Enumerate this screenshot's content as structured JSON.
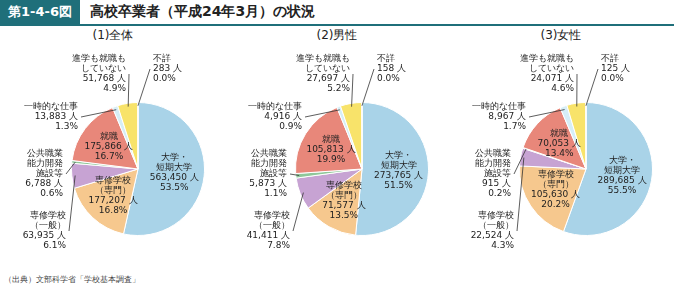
{
  "figure_number": "第1-4-6図",
  "title": "高校卒業者（平成24年3月）の状況",
  "source": "（出典）文部科学省「学校基本調査」",
  "chart_data": [
    {
      "type": "pie",
      "title": "(1)全体",
      "data_labels": true,
      "categories": [
        "大学・\n短期大学",
        "専修学校\n（専門）",
        "専修学校\n（一般）",
        "公共職業\n能力開発\n施設等",
        "就職",
        "一時的な仕事",
        "進学も就職も\nしていない",
        "不詳"
      ],
      "values": [
        563450,
        177207,
        63935,
        6788,
        175866,
        13883,
        51768,
        283
      ],
      "value_labels": [
        "563,450 人",
        "177,207 人",
        "63,935 人",
        "6,788 人",
        "175,866 人",
        "13,883 人",
        "51,768 人",
        "283 人"
      ],
      "percent_labels": [
        "53.5%",
        "16.8%",
        "6.1%",
        "0.6%",
        "16.7%",
        "1.3%",
        "4.9%",
        "0.0%"
      ],
      "colors": [
        "#a9d3e8",
        "#f6c88e",
        "#c7a3d3",
        "#8fc79a",
        "#e8877a",
        "#d6eef7",
        "#f8e36a",
        "#f2c94c"
      ]
    },
    {
      "type": "pie",
      "title": "(2)男性",
      "data_labels": true,
      "categories": [
        "大学・\n短期大学",
        "専修学校\n（専門）",
        "専修学校\n（一般）",
        "公共職業\n能力開発\n施設等",
        "就職",
        "一時的な仕事",
        "進学も就職も\nしていない",
        "不詳"
      ],
      "values": [
        273765,
        71577,
        41411,
        5873,
        105813,
        4916,
        27697,
        158
      ],
      "value_labels": [
        "273,765 人",
        "71,577 人",
        "41,411 人",
        "5,873 人",
        "105,813 人",
        "4,916 人",
        "27,697 人",
        "158 人"
      ],
      "percent_labels": [
        "51.5%",
        "13.5%",
        "7.8%",
        "1.1%",
        "19.9%",
        "0.9%",
        "5.2%",
        "0.0%"
      ],
      "colors": [
        "#a9d3e8",
        "#f6c88e",
        "#c7a3d3",
        "#8fc79a",
        "#e8877a",
        "#d6eef7",
        "#f8e36a",
        "#f2c94c"
      ]
    },
    {
      "type": "pie",
      "title": "(3)女性",
      "data_labels": true,
      "categories": [
        "大学・\n短期大学",
        "専修学校\n（専門）",
        "専修学校\n（一般）",
        "公共職業\n能力開発\n施設等",
        "就職",
        "一時的な仕事",
        "進学も就職も\nしていない",
        "不詳"
      ],
      "values": [
        289685,
        105630,
        22524,
        915,
        70053,
        8967,
        24071,
        125
      ],
      "value_labels": [
        "289,685 人",
        "105,630 人",
        "22,524 人",
        "915 人",
        "70,053 人",
        "8,967 人",
        "24,071 人",
        "125 人"
      ],
      "percent_labels": [
        "55.5%",
        "20.2%",
        "4.3%",
        "0.2%",
        "13.4%",
        "1.7%",
        "4.6%",
        "0.0%"
      ],
      "colors": [
        "#a9d3e8",
        "#f6c88e",
        "#c7a3d3",
        "#8fc79a",
        "#e8877a",
        "#d6eef7",
        "#f8e36a",
        "#f2c94c"
      ]
    }
  ]
}
